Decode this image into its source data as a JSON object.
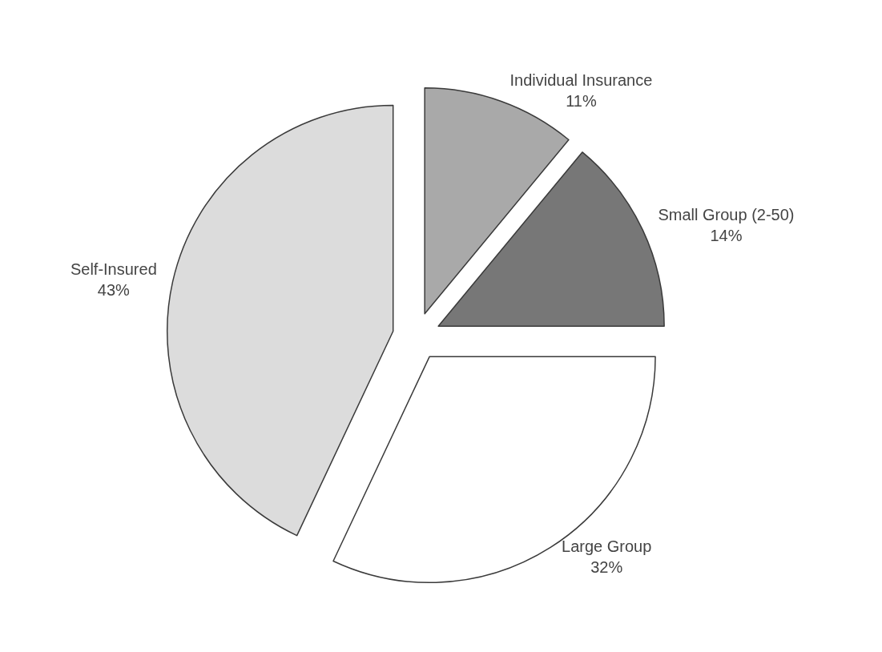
{
  "chart_data": {
    "type": "pie",
    "categories": [
      "Individual Insurance",
      "Small Group (2-50)",
      "Large Group",
      "Self-Insured"
    ],
    "values": [
      11,
      14,
      32,
      43
    ],
    "colors": [
      "#a9a9a9",
      "#777777",
      "#ffffff",
      "#dcdcdc"
    ],
    "value_labels": [
      "11%",
      "14%",
      "32%",
      "43%"
    ]
  }
}
